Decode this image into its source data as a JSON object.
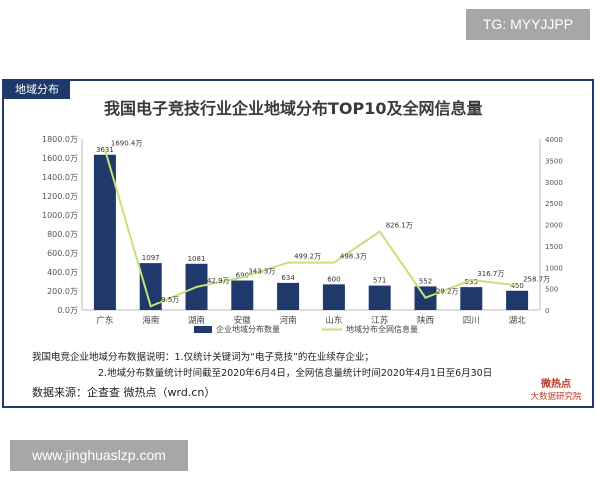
{
  "watermark_tg": "TG: MYYJJPP",
  "watermark_url": "www.jinghuaslzp.com",
  "corner_tag": "地域分布",
  "notes": {
    "line1": "我国电竞企业地域分布数据说明：1.仅统计关键词为“电子竞技”的在业续存企业；",
    "line2": "2.地域分布数量统计时间截至2020年6月4日，全网信息量统计时间2020年4月1日至6月30日"
  },
  "source": "数据来源：企查查 微热点（wrd.cn）",
  "brand": {
    "top": "微热点",
    "bottom": "大数据研究院"
  },
  "colors": {
    "bar": "#1f3a6a",
    "line": "#c8e07a",
    "axis_text": "#555555",
    "grid": "#e6e6e6"
  },
  "chart_data": {
    "type": "bar",
    "title": "我国电子竞技行业企业地域分布TOP10及全网信息量",
    "categories": [
      "广东",
      "海南",
      "湖南",
      "安徽",
      "河南",
      "山东",
      "江苏",
      "陕西",
      "四川",
      "湖北"
    ],
    "series": [
      {
        "name": "企业地域分布数量",
        "type": "bar",
        "axis": "right",
        "values": [
          3631,
          1097,
          1081,
          690,
          634,
          600,
          571,
          552,
          535,
          450
        ],
        "labels": [
          "3631",
          "1097",
          "1081",
          "690",
          "634",
          "600",
          "571",
          "552",
          "535",
          "450"
        ]
      },
      {
        "name": "地域分布全网信息量",
        "type": "line",
        "axis": "left",
        "values": [
          1690.4,
          39.5,
          242.9,
          343.3,
          499.2,
          498.3,
          826.1,
          129.2,
          316.7,
          258.7
        ],
        "labels": [
          "1690.4万",
          "39.5万",
          "242.9万",
          "343.3万",
          "499.2万",
          "498.3万",
          "826.1万",
          "129.2万",
          "316.7万",
          "258.7万"
        ]
      }
    ],
    "y_left": {
      "ylim": [
        0,
        1800
      ],
      "ticks": [
        "0.0万",
        "200.0万",
        "400.0万",
        "600.0万",
        "800.0万",
        "1000.0万",
        "1200.0万",
        "1400.0万",
        "1600.0万",
        "1800.0万"
      ]
    },
    "y_right": {
      "ylim": [
        0,
        4000
      ],
      "ticks": [
        "0",
        "500",
        "1000",
        "1500",
        "2000",
        "2500",
        "3000",
        "3500",
        "4000"
      ]
    },
    "grid": false,
    "legend_position": "bottom"
  }
}
